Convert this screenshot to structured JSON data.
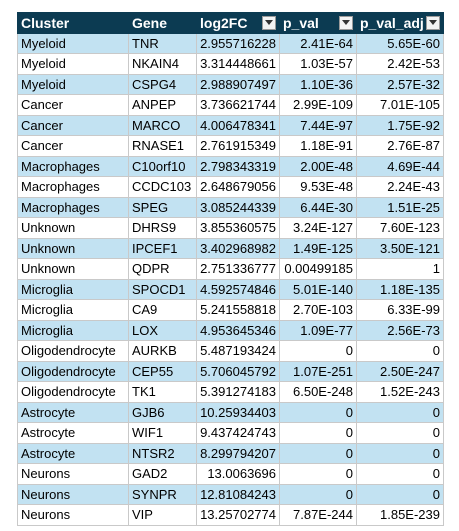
{
  "headers": [
    {
      "label": "Cluster",
      "filter": false
    },
    {
      "label": "Gene",
      "filter": false
    },
    {
      "label": "log2FC",
      "filter": true
    },
    {
      "label": "p_val",
      "filter": true
    },
    {
      "label": "p_val_adj",
      "filter": true
    }
  ],
  "rows": [
    {
      "cluster": "Myeloid",
      "gene": "TNR",
      "log2fc": "2.955716228",
      "p_val": "2.41E-64",
      "p_val_adj": "5.65E-60"
    },
    {
      "cluster": "Myeloid",
      "gene": "NKAIN4",
      "log2fc": "3.314448661",
      "p_val": "1.03E-57",
      "p_val_adj": "2.42E-53"
    },
    {
      "cluster": "Myeloid",
      "gene": "CSPG4",
      "log2fc": "2.988907497",
      "p_val": "1.10E-36",
      "p_val_adj": "2.57E-32"
    },
    {
      "cluster": "Cancer",
      "gene": "ANPEP",
      "log2fc": "3.736621744",
      "p_val": "2.99E-109",
      "p_val_adj": "7.01E-105"
    },
    {
      "cluster": "Cancer",
      "gene": "MARCO",
      "log2fc": "4.006478341",
      "p_val": "7.44E-97",
      "p_val_adj": "1.75E-92"
    },
    {
      "cluster": "Cancer",
      "gene": "RNASE1",
      "log2fc": "2.761915349",
      "p_val": "1.18E-91",
      "p_val_adj": "2.76E-87"
    },
    {
      "cluster": "Macrophages",
      "gene": "C10orf10",
      "log2fc": "2.798343319",
      "p_val": "2.00E-48",
      "p_val_adj": "4.69E-44"
    },
    {
      "cluster": "Macrophages",
      "gene": "CCDC103",
      "log2fc": "2.648679056",
      "p_val": "9.53E-48",
      "p_val_adj": "2.24E-43"
    },
    {
      "cluster": "Macrophages",
      "gene": "SPEG",
      "log2fc": "3.085244339",
      "p_val": "6.44E-30",
      "p_val_adj": "1.51E-25"
    },
    {
      "cluster": "Unknown",
      "gene": "DHRS9",
      "log2fc": "3.855360575",
      "p_val": "3.24E-127",
      "p_val_adj": "7.60E-123"
    },
    {
      "cluster": "Unknown",
      "gene": "IPCEF1",
      "log2fc": "3.402968982",
      "p_val": "1.49E-125",
      "p_val_adj": "3.50E-121"
    },
    {
      "cluster": "Unknown",
      "gene": "QDPR",
      "log2fc": "2.751336777",
      "p_val": "0.00499185",
      "p_val_adj": "1"
    },
    {
      "cluster": "Microglia",
      "gene": "SPOCD1",
      "log2fc": "4.592574846",
      "p_val": "5.01E-140",
      "p_val_adj": "1.18E-135"
    },
    {
      "cluster": "Microglia",
      "gene": "CA9",
      "log2fc": "5.241558818",
      "p_val": "2.70E-103",
      "p_val_adj": "6.33E-99"
    },
    {
      "cluster": "Microglia",
      "gene": "LOX",
      "log2fc": "4.953645346",
      "p_val": "1.09E-77",
      "p_val_adj": "2.56E-73"
    },
    {
      "cluster": "Oligodendrocyte",
      "gene": "AURKB",
      "log2fc": "5.487193424",
      "p_val": "0",
      "p_val_adj": "0"
    },
    {
      "cluster": "Oligodendrocyte",
      "gene": "CEP55",
      "log2fc": "5.706045792",
      "p_val": "1.07E-251",
      "p_val_adj": "2.50E-247"
    },
    {
      "cluster": "Oligodendrocyte",
      "gene": "TK1",
      "log2fc": "5.391274183",
      "p_val": "6.50E-248",
      "p_val_adj": "1.52E-243"
    },
    {
      "cluster": "Astrocyte",
      "gene": "GJB6",
      "log2fc": "10.25934403",
      "p_val": "0",
      "p_val_adj": "0"
    },
    {
      "cluster": "Astrocyte",
      "gene": "WIF1",
      "log2fc": "9.437424743",
      "p_val": "0",
      "p_val_adj": "0"
    },
    {
      "cluster": "Astrocyte",
      "gene": "NTSR2",
      "log2fc": "8.299794207",
      "p_val": "0",
      "p_val_adj": "0"
    },
    {
      "cluster": "Neurons",
      "gene": "GAD2",
      "log2fc": "13.0063696",
      "p_val": "0",
      "p_val_adj": "0"
    },
    {
      "cluster": "Neurons",
      "gene": "SYNPR",
      "log2fc": "12.81084243",
      "p_val": "0",
      "p_val_adj": "0"
    },
    {
      "cluster": "Neurons",
      "gene": "VIP",
      "log2fc": "13.25702774",
      "p_val": "7.87E-244",
      "p_val_adj": "1.85E-239"
    }
  ],
  "colors": {
    "header_bg": "#0c3b52",
    "header_text": "#ffffff",
    "band_bg": "#c2e2f2",
    "plain_bg": "#ffffff",
    "grid": "#c9c9c9"
  },
  "icons": {
    "filter": "dropdown-arrow-icon"
  }
}
